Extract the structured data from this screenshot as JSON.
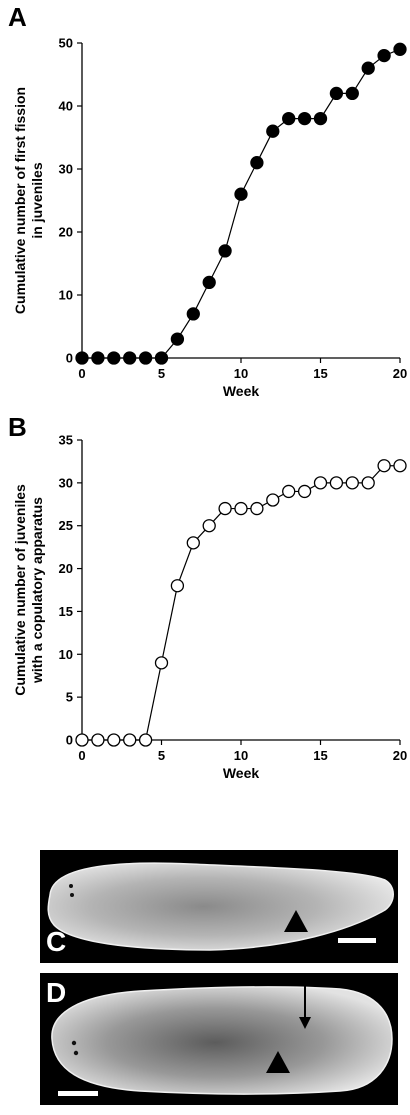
{
  "panels": {
    "a": "A",
    "b": "B",
    "c": "C",
    "d": "D"
  },
  "chart_data": [
    {
      "type": "line",
      "marker": "filled-circle",
      "xlabel": "Week",
      "ylabel_lines": [
        "Cumulative number of first fission",
        "in juveniles"
      ],
      "xlim": [
        0,
        20
      ],
      "ylim": [
        0,
        50
      ],
      "xticks": [
        0,
        5,
        10,
        15,
        20
      ],
      "yticks": [
        0,
        10,
        20,
        30,
        40,
        50
      ],
      "grid": false,
      "x": [
        0,
        1,
        2,
        3,
        4,
        5,
        6,
        7,
        8,
        9,
        10,
        11,
        12,
        13,
        14,
        15,
        16,
        17,
        18,
        19,
        20
      ],
      "y": [
        0,
        0,
        0,
        0,
        0,
        0,
        3,
        7,
        12,
        17,
        26,
        31,
        36,
        38,
        38,
        38,
        42,
        42,
        46,
        48,
        49
      ]
    },
    {
      "type": "line",
      "marker": "open-circle",
      "xlabel": "Week",
      "ylabel_lines": [
        "Cumulative number of juveniles",
        "with a copulatory apparatus"
      ],
      "xlim": [
        0,
        20
      ],
      "ylim": [
        0,
        35
      ],
      "xticks": [
        0,
        5,
        10,
        15,
        20
      ],
      "yticks": [
        0,
        5,
        10,
        15,
        20,
        25,
        30,
        35
      ],
      "grid": false,
      "x": [
        0,
        1,
        2,
        3,
        4,
        5,
        6,
        7,
        8,
        9,
        10,
        11,
        12,
        13,
        14,
        15,
        16,
        17,
        18,
        19,
        20
      ],
      "y": [
        0,
        0,
        0,
        0,
        0,
        9,
        18,
        23,
        25,
        27,
        27,
        27,
        28,
        29,
        29,
        30,
        30,
        30,
        30,
        32,
        32
      ]
    }
  ],
  "colors": {
    "line": "#000000",
    "photo_background": "#000000",
    "scalebar": "#ffffff"
  }
}
